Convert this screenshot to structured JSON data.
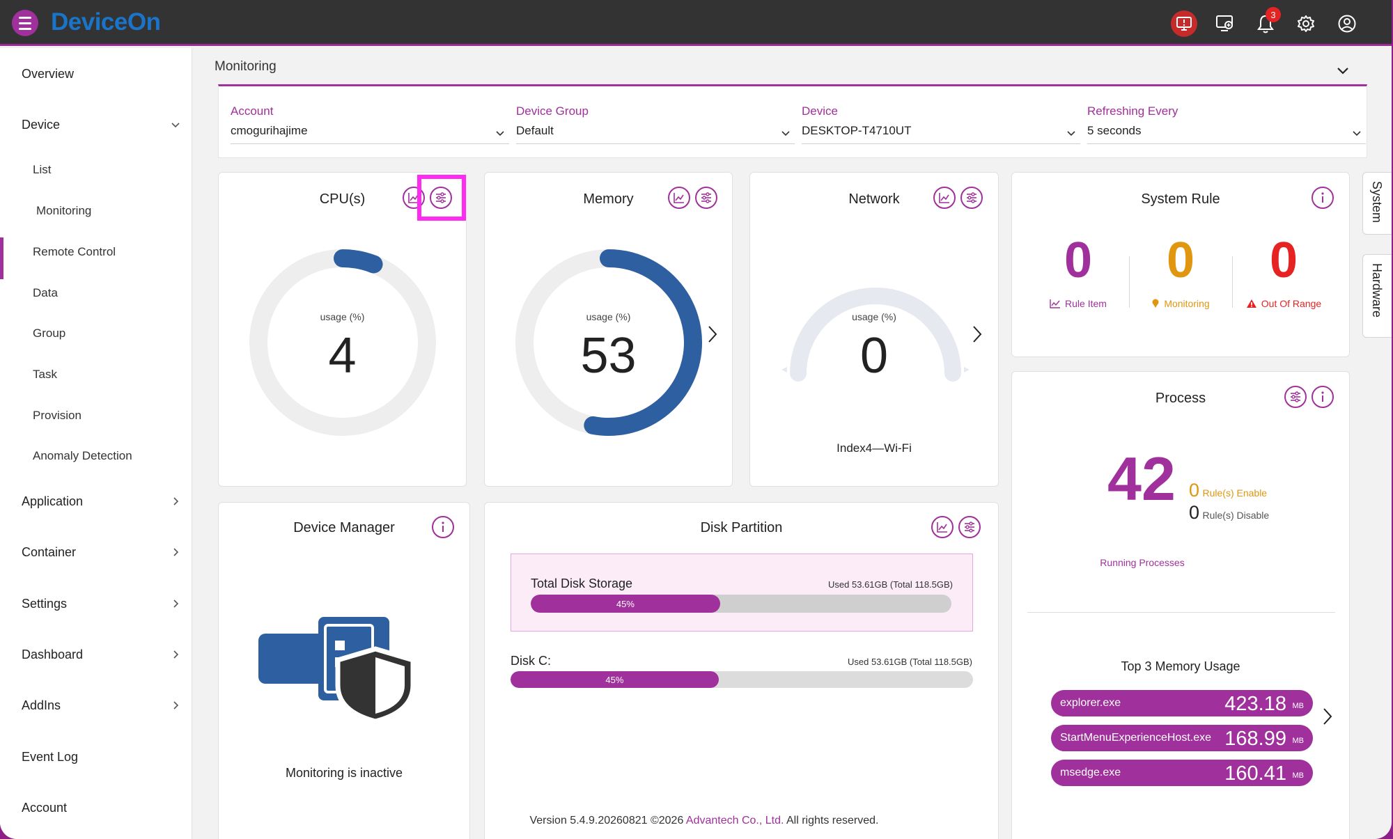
{
  "app": {
    "logo": "DeviceOn",
    "notification_count": "3"
  },
  "topbar_icons": [
    "remote-desktop-alert-icon",
    "add-screen-icon",
    "bell-icon",
    "gear-icon",
    "user-icon"
  ],
  "sidebar": {
    "overview": "Overview",
    "device": "Device",
    "device_items": {
      "list": "List",
      "monitoring": "Monitoring",
      "remote_control": "Remote Control",
      "data": "Data",
      "group": "Group",
      "task": "Task",
      "provision": "Provision",
      "anomaly_detection": "Anomaly Detection"
    },
    "application": "Application",
    "container": "Container",
    "settings": "Settings",
    "dashboard": "Dashboard",
    "addins": "AddIns",
    "event_log": "Event Log",
    "account": "Account"
  },
  "monitoring": {
    "title": "Monitoring",
    "filters": {
      "account": {
        "label": "Account",
        "value": "cmogurihajime"
      },
      "group": {
        "label": "Device Group",
        "value": "Default"
      },
      "device": {
        "label": "Device",
        "value": "DESKTOP-T4710UT"
      },
      "refresh": {
        "label": "Refreshing Every",
        "value": "5 seconds"
      }
    }
  },
  "cpu": {
    "title": "CPU(s)",
    "usage_label": "usage (%)",
    "value": "4",
    "percent": 4
  },
  "memory": {
    "title": "Memory",
    "usage_label": "usage (%)",
    "value": "53",
    "percent": 53
  },
  "network": {
    "title": "Network",
    "usage_label": "usage (%)",
    "value": "0",
    "interface": "Index4—Wi-Fi"
  },
  "system_rule": {
    "title": "System Rule",
    "rule_item": {
      "value": "0",
      "label": "Rule Item",
      "color": "#a0309b"
    },
    "monitoring": {
      "value": "0",
      "label": "Monitoring",
      "color": "#e0960e"
    },
    "out_of_range": {
      "value": "0",
      "label": "Out Of Range",
      "color": "#e52323"
    }
  },
  "process": {
    "title": "Process",
    "running": "42",
    "running_label": "Running Processes",
    "enable_count": "0",
    "enable_label": "Rule(s) Enable",
    "disable_count": "0",
    "disable_label": "Rule(s) Disable",
    "top_title": "Top 3 Memory Usage",
    "top": [
      {
        "name": "explorer.exe",
        "value": "423.18",
        "unit": "MB"
      },
      {
        "name": "StartMenuExperienceHost.exe",
        "value": "168.99",
        "unit": "MB"
      },
      {
        "name": "msedge.exe",
        "value": "160.41",
        "unit": "MB"
      }
    ]
  },
  "device_manager": {
    "title": "Device Manager",
    "status": "Monitoring is inactive"
  },
  "disk": {
    "title": "Disk Partition",
    "total": {
      "label": "Total Disk Storage",
      "used": "Used 53.61GB (Total 118.5GB)",
      "percent_text": "45%",
      "percent": 45
    },
    "c": {
      "label": "Disk C:",
      "used": "Used 53.61GB (Total 118.5GB)",
      "percent_text": "45%",
      "percent": 45
    }
  },
  "side_tabs": {
    "system": "System",
    "hardware": "Hardware"
  },
  "footer": {
    "version": "Version 5.4.9.20260821 ©2026 ",
    "company": "Advantech Co., Ltd.",
    "rights": " All rights reserved."
  },
  "colors": {
    "accent": "#a0309b",
    "gauge_blue": "#2e5fa1",
    "topbar": "#333333"
  }
}
